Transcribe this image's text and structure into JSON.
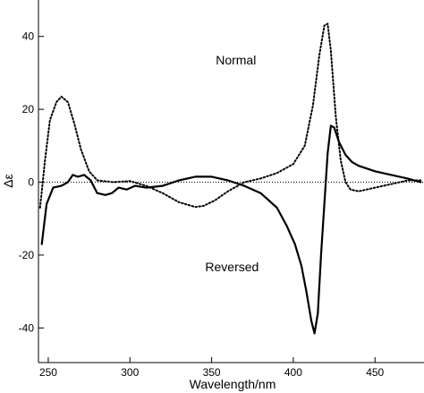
{
  "chart_data": {
    "type": "line",
    "xlabel": "Wavelength/nm",
    "ylabel": "Δε",
    "xlim": [
      244,
      480
    ],
    "ylim": [
      -49.5,
      50
    ],
    "xticks": [
      250,
      300,
      350,
      400,
      450
    ],
    "yticks": [
      -40,
      -20,
      0,
      20,
      40
    ],
    "grid": false,
    "legend": "none",
    "zero_reference_line": "dotted",
    "annotations": [
      {
        "text": "Normal",
        "x": 418,
        "y": 34.5
      },
      {
        "text": "Reversed",
        "x": 380,
        "y": -24
      }
    ],
    "series": [
      {
        "name": "Normal",
        "style": "dotted",
        "color": "#000000",
        "points": [
          [
            245,
            -7
          ],
          [
            248,
            6
          ],
          [
            251,
            17
          ],
          [
            255,
            22
          ],
          [
            258,
            23.5
          ],
          [
            262,
            22
          ],
          [
            266,
            16
          ],
          [
            270,
            9
          ],
          [
            275,
            3
          ],
          [
            280,
            0.5
          ],
          [
            290,
            0
          ],
          [
            300,
            0.3
          ],
          [
            310,
            -1
          ],
          [
            320,
            -3
          ],
          [
            330,
            -5.5
          ],
          [
            340,
            -6.8
          ],
          [
            345,
            -6.5
          ],
          [
            352,
            -5
          ],
          [
            360,
            -2.5
          ],
          [
            370,
            0
          ],
          [
            380,
            1
          ],
          [
            390,
            2.5
          ],
          [
            400,
            5
          ],
          [
            407,
            10
          ],
          [
            412,
            21
          ],
          [
            416,
            35
          ],
          [
            419,
            43
          ],
          [
            421,
            43.5
          ],
          [
            423,
            36
          ],
          [
            426,
            18
          ],
          [
            429,
            6
          ],
          [
            432,
            0
          ],
          [
            435,
            -2
          ],
          [
            440,
            -2.5
          ],
          [
            450,
            -1.5
          ],
          [
            460,
            -0.5
          ],
          [
            470,
            0.5
          ],
          [
            478,
            0.5
          ]
        ]
      },
      {
        "name": "Reversed",
        "style": "solid",
        "color": "#000000",
        "points": [
          [
            246,
            -17
          ],
          [
            249,
            -6
          ],
          [
            253,
            -1.5
          ],
          [
            258,
            -1
          ],
          [
            262,
            0
          ],
          [
            265,
            2
          ],
          [
            268,
            1.5
          ],
          [
            272,
            2
          ],
          [
            276,
            0.5
          ],
          [
            280,
            -3
          ],
          [
            285,
            -3.5
          ],
          [
            289,
            -3
          ],
          [
            293,
            -1.5
          ],
          [
            298,
            -2
          ],
          [
            303,
            -1
          ],
          [
            310,
            -1.5
          ],
          [
            320,
            -1
          ],
          [
            330,
            0.5
          ],
          [
            340,
            1.5
          ],
          [
            350,
            1.5
          ],
          [
            360,
            0.5
          ],
          [
            370,
            -1
          ],
          [
            380,
            -3
          ],
          [
            390,
            -7
          ],
          [
            396,
            -12
          ],
          [
            401,
            -17
          ],
          [
            405,
            -23
          ],
          [
            408,
            -30
          ],
          [
            411,
            -38
          ],
          [
            413,
            -41.5
          ],
          [
            415,
            -36
          ],
          [
            417,
            -20
          ],
          [
            419,
            -6
          ],
          [
            421,
            8
          ],
          [
            423,
            15.5
          ],
          [
            425,
            15
          ],
          [
            428,
            11
          ],
          [
            432,
            7.5
          ],
          [
            436,
            5.5
          ],
          [
            440,
            4.5
          ],
          [
            450,
            3
          ],
          [
            460,
            2
          ],
          [
            470,
            1
          ],
          [
            478,
            0
          ]
        ]
      }
    ]
  }
}
